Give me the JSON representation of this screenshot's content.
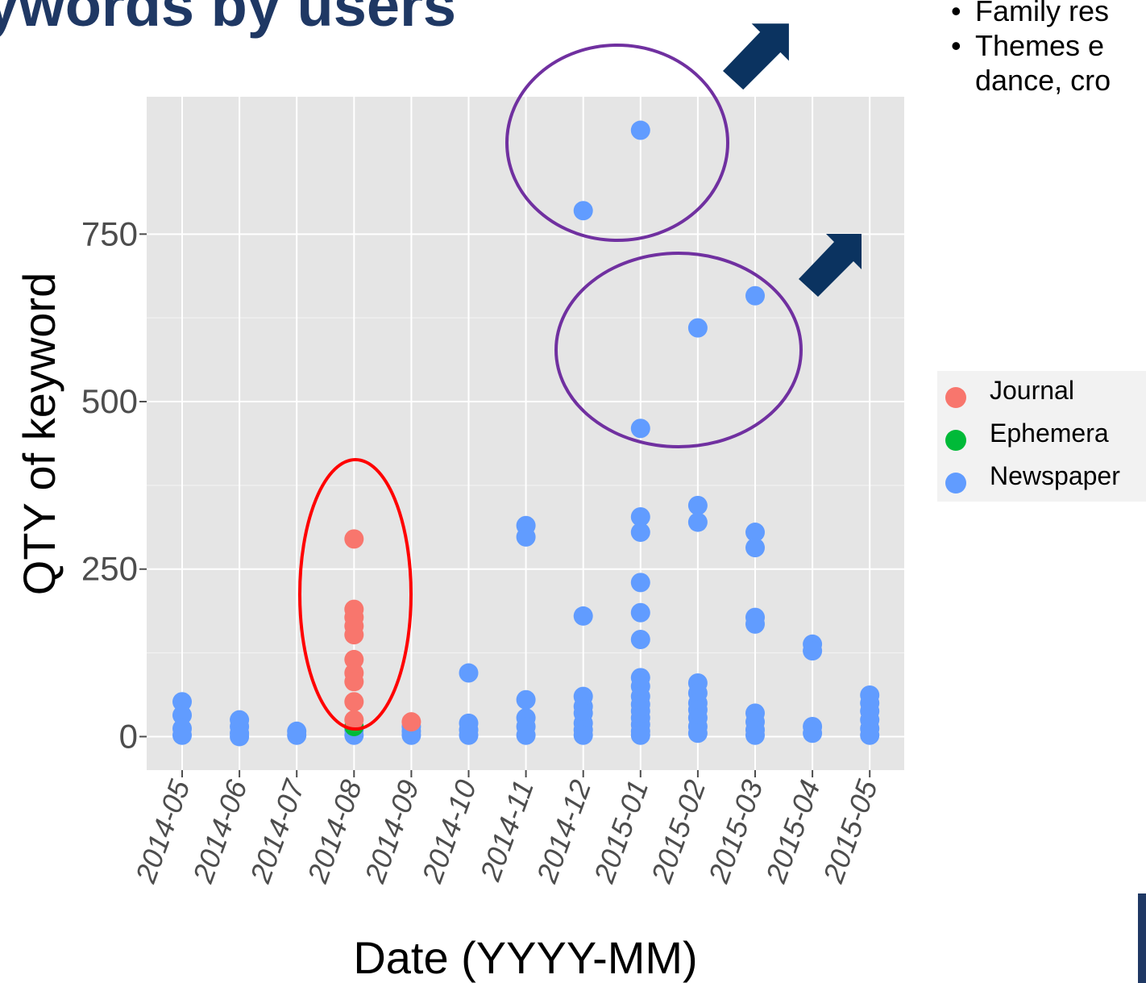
{
  "slide": {
    "title": "ywords by users",
    "bullets": [
      {
        "text": "Family res"
      },
      {
        "text": "Themes e",
        "continuation": "dance, cro"
      }
    ]
  },
  "colors": {
    "title": "#1F3864",
    "arrow": "#0B3360",
    "ellipse_highlight": "#7030A0",
    "ellipse_alert": "#FF0000",
    "panel": "#E5E5E5",
    "grid": "#FFFFFF"
  },
  "chart_data": {
    "type": "scatter",
    "xlabel": "Date (YYYY-MM)",
    "ylabel": "QTY of keyword",
    "ylim": [
      -50,
      955
    ],
    "categories": [
      "2014-05",
      "2014-06",
      "2014-07",
      "2014-08",
      "2014-09",
      "2014-10",
      "2014-11",
      "2014-12",
      "2015-01",
      "2015-02",
      "2015-03",
      "2015-04",
      "2015-05"
    ],
    "yticks": [
      0,
      250,
      500,
      750
    ],
    "grid": true,
    "legend_position": "right",
    "series": [
      {
        "name": "Journal",
        "color": "#F8766D",
        "points": [
          [
            "2014-08",
            295
          ],
          [
            "2014-08",
            190
          ],
          [
            "2014-08",
            178
          ],
          [
            "2014-08",
            165
          ],
          [
            "2014-08",
            152
          ],
          [
            "2014-08",
            115
          ],
          [
            "2014-08",
            95
          ],
          [
            "2014-08",
            82
          ],
          [
            "2014-08",
            52
          ],
          [
            "2014-08",
            25
          ],
          [
            "2014-09",
            22
          ]
        ]
      },
      {
        "name": "Ephemera",
        "color": "#00BA38",
        "points": [
          [
            "2014-08",
            15
          ]
        ]
      },
      {
        "name": "Newspaper",
        "color": "#619CFF",
        "points": [
          [
            "2014-05",
            52
          ],
          [
            "2014-05",
            32
          ],
          [
            "2014-05",
            12
          ],
          [
            "2014-05",
            2
          ],
          [
            "2014-06",
            25
          ],
          [
            "2014-06",
            15
          ],
          [
            "2014-06",
            5
          ],
          [
            "2014-06",
            0
          ],
          [
            "2014-07",
            8
          ],
          [
            "2014-07",
            2
          ],
          [
            "2014-08",
            10
          ],
          [
            "2014-08",
            2
          ],
          [
            "2014-09",
            15
          ],
          [
            "2014-09",
            8
          ],
          [
            "2014-09",
            2
          ],
          [
            "2014-10",
            95
          ],
          [
            "2014-10",
            20
          ],
          [
            "2014-10",
            10
          ],
          [
            "2014-10",
            2
          ],
          [
            "2014-11",
            315
          ],
          [
            "2014-11",
            298
          ],
          [
            "2014-11",
            55
          ],
          [
            "2014-11",
            28
          ],
          [
            "2014-11",
            15
          ],
          [
            "2014-11",
            2
          ],
          [
            "2014-12",
            785
          ],
          [
            "2014-12",
            180
          ],
          [
            "2014-12",
            60
          ],
          [
            "2014-12",
            45
          ],
          [
            "2014-12",
            35
          ],
          [
            "2014-12",
            20
          ],
          [
            "2014-12",
            10
          ],
          [
            "2014-12",
            2
          ],
          [
            "2015-01",
            905
          ],
          [
            "2015-01",
            460
          ],
          [
            "2015-01",
            328
          ],
          [
            "2015-01",
            305
          ],
          [
            "2015-01",
            230
          ],
          [
            "2015-01",
            185
          ],
          [
            "2015-01",
            145
          ],
          [
            "2015-01",
            88
          ],
          [
            "2015-01",
            75
          ],
          [
            "2015-01",
            60
          ],
          [
            "2015-01",
            48
          ],
          [
            "2015-01",
            38
          ],
          [
            "2015-01",
            28
          ],
          [
            "2015-01",
            18
          ],
          [
            "2015-01",
            8
          ],
          [
            "2015-01",
            2
          ],
          [
            "2015-02",
            610
          ],
          [
            "2015-02",
            345
          ],
          [
            "2015-02",
            320
          ],
          [
            "2015-02",
            80
          ],
          [
            "2015-02",
            65
          ],
          [
            "2015-02",
            50
          ],
          [
            "2015-02",
            40
          ],
          [
            "2015-02",
            28
          ],
          [
            "2015-02",
            15
          ],
          [
            "2015-02",
            5
          ],
          [
            "2015-03",
            658
          ],
          [
            "2015-03",
            305
          ],
          [
            "2015-03",
            282
          ],
          [
            "2015-03",
            178
          ],
          [
            "2015-03",
            168
          ],
          [
            "2015-03",
            35
          ],
          [
            "2015-03",
            22
          ],
          [
            "2015-03",
            10
          ],
          [
            "2015-03",
            2
          ],
          [
            "2015-04",
            138
          ],
          [
            "2015-04",
            128
          ],
          [
            "2015-04",
            15
          ],
          [
            "2015-04",
            5
          ],
          [
            "2015-05",
            62
          ],
          [
            "2015-05",
            50
          ],
          [
            "2015-05",
            38
          ],
          [
            "2015-05",
            25
          ],
          [
            "2015-05",
            12
          ],
          [
            "2015-05",
            2
          ]
        ]
      }
    ]
  }
}
